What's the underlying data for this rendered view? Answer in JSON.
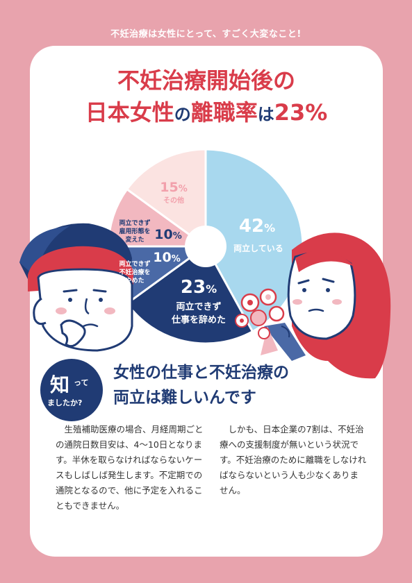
{
  "banner": "不妊治療は女性にとって、すごく大変なこと!",
  "headline": {
    "line1": "不妊治療開始後の",
    "line2_a": "日本女性",
    "line2_b": "の",
    "line2_c": "離職率",
    "line2_d": "は",
    "line2_e": "23%"
  },
  "chart_data": {
    "type": "pie",
    "slices": [
      {
        "label": "両立している",
        "value": 42,
        "color": "#a8d8ee"
      },
      {
        "label": "両立できず仕事を辞めた",
        "value": 23,
        "color": "#203b74"
      },
      {
        "label": "両立できず不妊治療をやめた",
        "value": 10,
        "color": "#4a69a6"
      },
      {
        "label": "両立できず雇用形態を変えた",
        "value": 10,
        "color": "#f2b8c0"
      },
      {
        "label": "その他",
        "value": 15,
        "color": "#fbe3e1"
      }
    ]
  },
  "chart_labels": {
    "s1_value": "42",
    "s1_label": "両立している",
    "s2_value": "23",
    "s2_line1": "両立できず",
    "s2_line2": "仕事を辞めた",
    "s3_value": "10",
    "s3_line1": "両立できず",
    "s3_line2": "不妊治療を",
    "s3_line3": "やめた",
    "s4_value": "10",
    "s4_line1": "両立できず",
    "s4_line2": "雇用形態を",
    "s4_line3": "変えた",
    "s5_value": "15",
    "s5_label": "その他",
    "unit": "%"
  },
  "knew_badge": {
    "big": "知",
    "small1": "って",
    "small2": "ましたか?"
  },
  "sub_heading": {
    "line1": "女性の仕事と不妊治療の",
    "line2": "両立は難しいんです"
  },
  "body": {
    "col1": "生殖補助医療の場合、月経周期ごとの通院日数目安は、4～10日となります。半休を取らなければならないケースもしばしば発生します。不定期での通院となるので、他に予定を入れることもできません。",
    "col2": "しかも、日本企業の7割は、不妊治療への支援制度が無いという状況です。不妊治療のために離職をしなければならないという人も少なくありません。"
  },
  "colors": {
    "background": "#e8a3ad",
    "accent_red": "#d93c4a",
    "navy": "#203b74"
  }
}
